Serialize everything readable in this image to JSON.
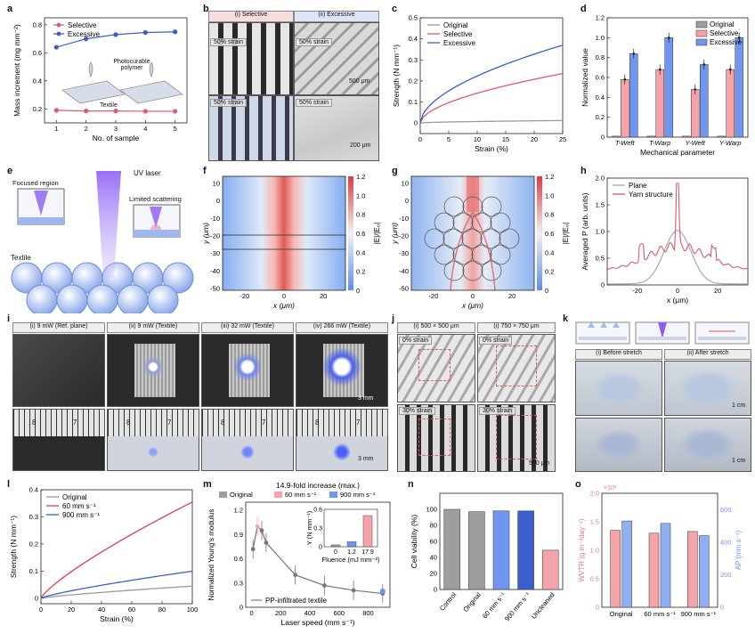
{
  "panels": {
    "a": {
      "letter": "a",
      "chart_data": {
        "type": "line",
        "title": "",
        "xlabel": "No. of sample",
        "ylabel": "Mass increment (mg mm⁻²)",
        "x": [
          1,
          2,
          3,
          4,
          5
        ],
        "xlim": [
          0.6,
          5.4
        ],
        "ylim": [
          0.1,
          0.85
        ],
        "series": [
          {
            "name": "Selective",
            "values": [
              0.19,
              0.185,
              0.185,
              0.183,
              0.183
            ],
            "color": "#e05a6a"
          },
          {
            "name": "Excessive",
            "values": [
              0.64,
              0.7,
              0.73,
              0.745,
              0.75
            ],
            "color": "#3a5fcd"
          }
        ],
        "yticks": [
          "0.2",
          "0.4",
          "0.6",
          "0.8"
        ],
        "xticks": [
          "1",
          "2",
          "3",
          "4",
          "5"
        ]
      },
      "annot_poly": "Photocurable polymer",
      "annot_tex": "Textile"
    },
    "b": {
      "letter": "b",
      "h1": "(i) Selective",
      "h2": "(ii) Excessive",
      "tags": [
        "50% strain",
        "50% strain",
        "50% strain",
        "50% strain"
      ],
      "scale1": "500 μm",
      "scale2": "200 μm"
    },
    "c": {
      "letter": "c",
      "chart_data": {
        "type": "line",
        "xlabel": "Strain (%)",
        "ylabel": "Strength (N mm⁻¹)",
        "xlim": [
          0,
          25
        ],
        "ylim": [
          -0.05,
          0.5
        ],
        "xticks": [
          "0",
          "5",
          "10",
          "15",
          "20",
          "25"
        ],
        "yticks": [
          "0",
          "0.1",
          "0.2",
          "0.3",
          "0.4",
          "0.5"
        ],
        "series": [
          {
            "name": "Original",
            "end": 0.012,
            "color": "#9a9a9a"
          },
          {
            "name": "Selective",
            "end": 0.235,
            "color": "#e05a6a"
          },
          {
            "name": "Excessive",
            "end": 0.37,
            "color": "#3a5fcd"
          }
        ]
      }
    },
    "d": {
      "letter": "d",
      "chart_data": {
        "type": "bar",
        "xlabel": "Mechanical parameter",
        "ylabel": "Normalized value",
        "ylim": [
          0,
          1.2
        ],
        "yticks": [
          "0",
          "0.2",
          "0.4",
          "0.6",
          "0.8",
          "1.0",
          "1.2"
        ],
        "categories": [
          "T-Weft",
          "T-Warp",
          "Y-Weft",
          "Y-Warp"
        ],
        "series": [
          {
            "name": "Original",
            "values": [
              0.01,
              0.01,
              0.01,
              0.01
            ],
            "color": "#9e9e9e"
          },
          {
            "name": "Selective",
            "values": [
              0.58,
              0.68,
              0.48,
              0.68
            ],
            "color": "#f4a3a8"
          },
          {
            "name": "Excessive",
            "values": [
              0.84,
              1.0,
              0.73,
              1.0
            ],
            "color": "#6f96f0"
          }
        ]
      }
    },
    "e": {
      "letter": "e",
      "uv": "UV laser",
      "focus": "Focused region",
      "scatter": "Limited scattering",
      "textile": "Textile"
    },
    "f": {
      "letter": "f",
      "xlabel": "x (μm)",
      "ylabel": "y (μm)",
      "cb": "|E|/|E₀|",
      "xticks": [
        "-20",
        "0",
        "20"
      ],
      "yticks": [
        "10",
        "0",
        "-10",
        "-20",
        "-30",
        "-40",
        "-50"
      ],
      "cbticks": [
        "1.2",
        "1.0",
        "0.8",
        "0.6",
        "0.4",
        "0.2",
        "0"
      ]
    },
    "g": {
      "letter": "g",
      "xlabel": "x (μm)",
      "ylabel": "y (μm)",
      "cb": "|E|/|E₀|",
      "xticks": [
        "-20",
        "0",
        "20"
      ],
      "yticks": [
        "10",
        "0",
        "-10",
        "-20",
        "-30",
        "-40",
        "-50"
      ],
      "cbticks": [
        "1.2",
        "1.0",
        "0.8",
        "0.6",
        "0.4",
        "0.2",
        "0"
      ]
    },
    "h": {
      "letter": "h",
      "chart_data": {
        "type": "line",
        "xlabel": "x (μm)",
        "ylabel": "Averaged P (arb. units)",
        "xlim": [
          -35,
          35
        ],
        "ylim": [
          0,
          2.0
        ],
        "xticks": [
          "-20",
          "0",
          "20"
        ],
        "yticks": [
          "0",
          "0.5",
          "1.0",
          "1.5",
          "2.0"
        ],
        "series": [
          {
            "name": "Plane",
            "color": "#aaaaaa"
          },
          {
            "name": "Yarn structure",
            "color": "#d65a66"
          }
        ]
      }
    },
    "i": {
      "letter": "i",
      "tabs": [
        "(i) 9 mW (Ref. plane)",
        "(ii) 9 mW (Textile)",
        "(iii) 32 mW (Textile)",
        "(iv) 266 mW (Textile)"
      ],
      "s1": "3 mm",
      "s2": "3 mm",
      "ruler": [
        "8",
        "7",
        "8",
        "7",
        "8",
        "7",
        "8",
        "7"
      ]
    },
    "j": {
      "letter": "j",
      "h1": "(i) 500 × 500 μm",
      "h2": "(i) 750 × 750 μm",
      "t0a": "0% strain",
      "t0b": "0% strain",
      "t30a": "30% strain",
      "t30b": "30% strain",
      "scale": "500 μm"
    },
    "k": {
      "letter": "k",
      "h1": "(i) Before stretch",
      "h2": "(ii) After stretch",
      "s1": "1 cm",
      "s2": "1 cm"
    },
    "l": {
      "letter": "l",
      "chart_data": {
        "type": "line",
        "xlabel": "Strain (%)",
        "ylabel": "Strength (N mm⁻¹)",
        "xlim": [
          0,
          100
        ],
        "ylim": [
          -0.02,
          0.4
        ],
        "xticks": [
          "0",
          "20",
          "40",
          "60",
          "80",
          "100"
        ],
        "yticks": [
          "0",
          "0.1",
          "0.2",
          "0.3",
          "0.4"
        ],
        "series": [
          {
            "name": "Original",
            "end": 0.045,
            "color": "#9a9a9a"
          },
          {
            "name": "60 mm s⁻¹",
            "end": 0.355,
            "color": "#d9404e"
          },
          {
            "name": "900 mm s⁻¹",
            "end": 0.1,
            "color": "#3a5fcd"
          }
        ]
      }
    },
    "m": {
      "letter": "m",
      "title": "14.9-fold increase (max.)",
      "legend": [
        "Original",
        "60 mm s⁻¹",
        "900 mm s⁻¹"
      ],
      "pp": "PP-infiltrated textile",
      "chart_data": {
        "type": "line",
        "xlabel": "Laser speed (mm s⁻¹)",
        "ylabel": "Normalized Young's modulus",
        "xlim": [
          -40,
          950
        ],
        "ylim": [
          0,
          1.3
        ],
        "xticks": [
          "0",
          "200",
          "400",
          "600",
          "800"
        ],
        "yticks": [
          "0",
          "0.3",
          "0.6",
          "0.9",
          "1.2"
        ],
        "x": [
          10,
          40,
          70,
          100,
          300,
          500,
          700,
          900
        ],
        "values": [
          0.72,
          1.0,
          0.95,
          0.8,
          0.4,
          0.27,
          0.21,
          0.17
        ],
        "inset": {
          "xlabel": "Fluence (mJ mm⁻²)",
          "ylabel": "Y (N mm⁻¹)",
          "categories": [
            "0",
            "1.2",
            "17.9"
          ],
          "values": [
            0.03,
            0.08,
            0.5
          ],
          "yticks": [
            "0",
            "0.3",
            "0.6"
          ]
        }
      }
    },
    "n": {
      "letter": "n",
      "chart_data": {
        "type": "bar",
        "ylabel": "Cell viability (%)",
        "ylim": [
          0,
          120
        ],
        "yticks": [
          "0",
          "20",
          "40",
          "60",
          "80",
          "100"
        ],
        "categories": [
          "Control",
          "Original",
          "60 mm s⁻¹",
          "900 mm s⁻¹",
          "Uncleaned"
        ],
        "values": [
          100,
          97,
          98,
          98,
          49
        ],
        "colors": [
          "#9e9e9e",
          "#9e9e9e",
          "#6f96f0",
          "#3a5fcd",
          "#f4a3a8"
        ]
      }
    },
    "o": {
      "letter": "o",
      "chart_data": {
        "type": "bar",
        "ylabel": "WVTR (g m⁻²day⁻¹)",
        "ylabel2": "AP (mm s⁻¹)",
        "exp": "×10³",
        "ylim": [
          0,
          2
        ],
        "yticks": [
          "0",
          "0.5",
          "1.0",
          "1.5",
          "2.0"
        ],
        "y2ticks": [
          "0",
          "200",
          "400",
          "600"
        ],
        "categories": [
          "Original",
          "60 mm s⁻¹",
          "900 mm s⁻¹"
        ],
        "wvtr": [
          1.35,
          1.3,
          1.33
        ],
        "ap": [
          530,
          515,
          440
        ]
      }
    }
  }
}
